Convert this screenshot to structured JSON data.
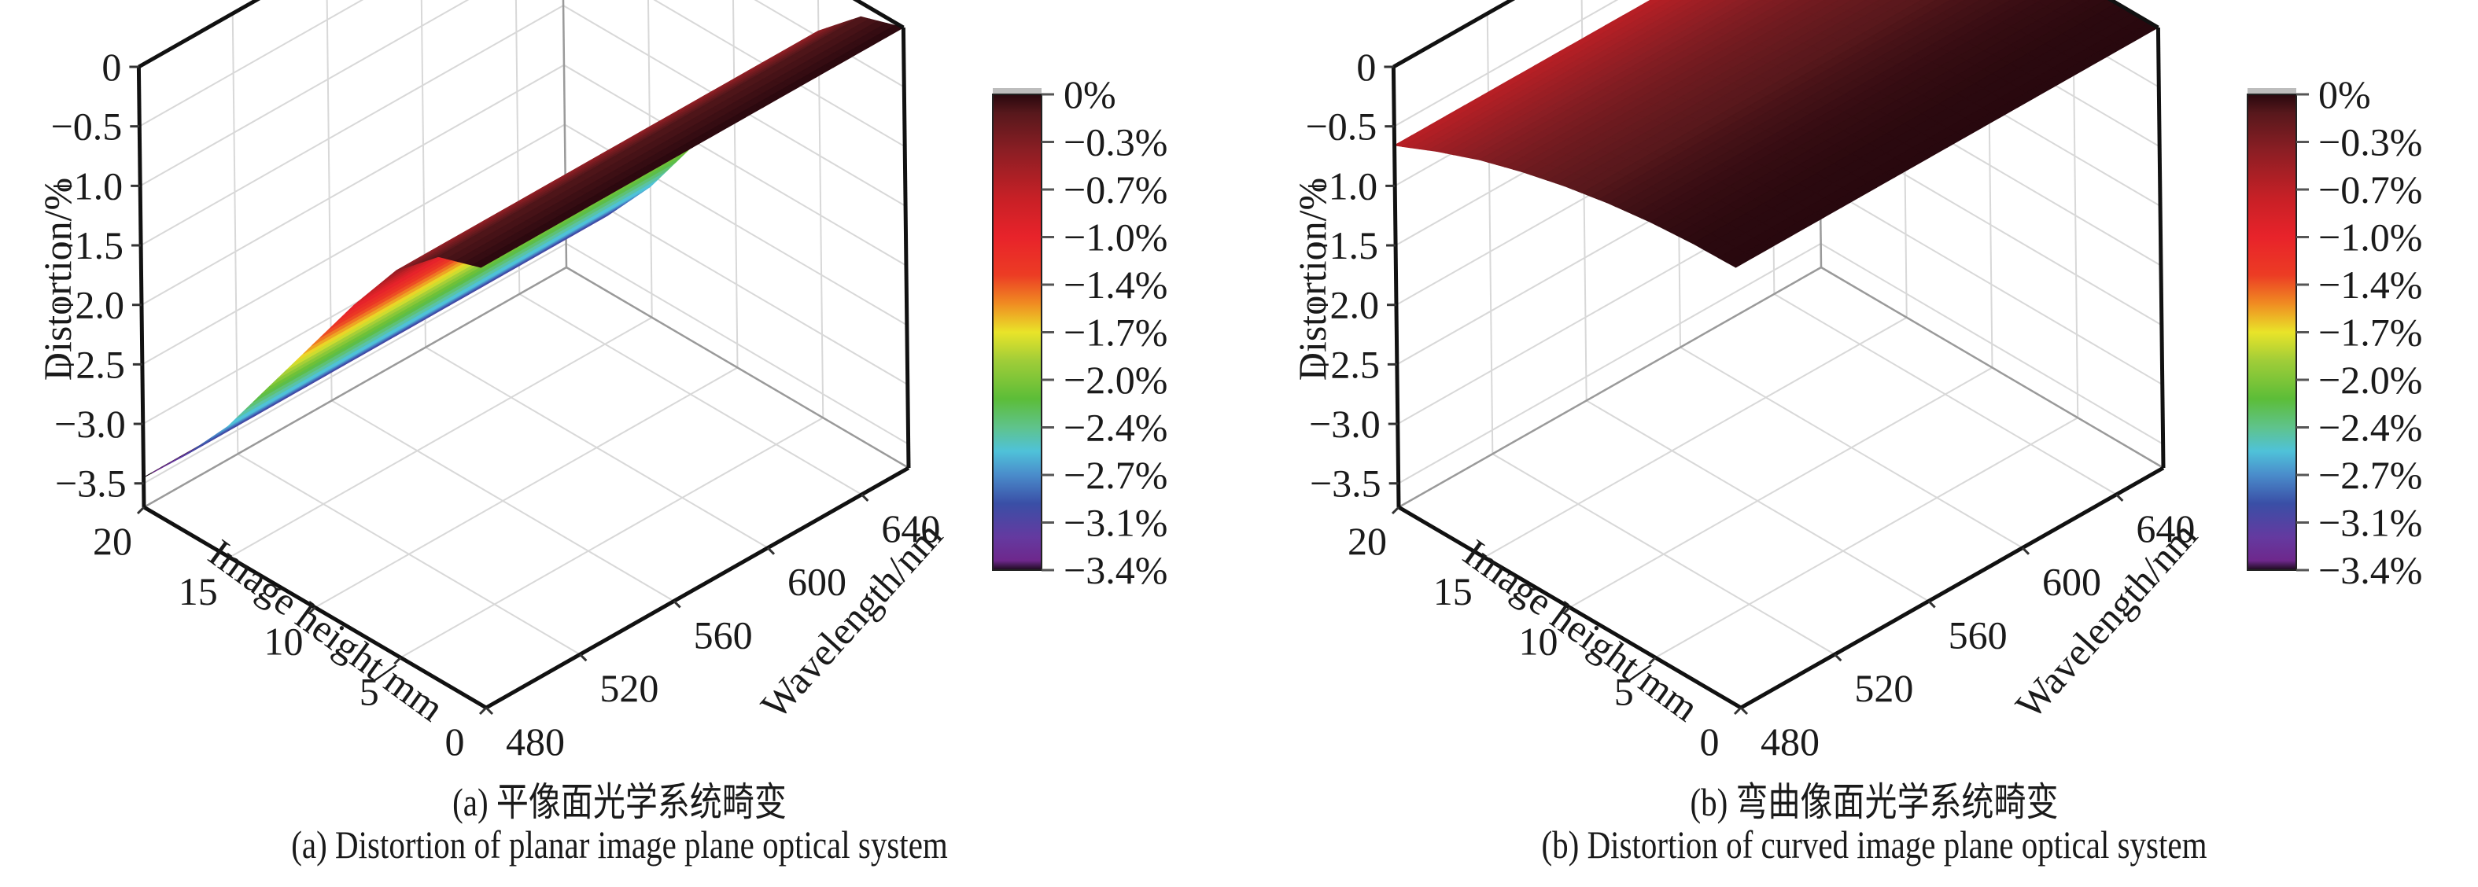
{
  "figure": {
    "panels": [
      {
        "id": "a",
        "caption_cn": "(a) 平像面光学系统畸变",
        "caption_en": "(a) Distortion of planar image plane optical system"
      },
      {
        "id": "b",
        "caption_cn": "(b) 弯曲像面光学系统畸变",
        "caption_en": "(b) Distortion of curved image plane optical system"
      }
    ]
  },
  "chart_data": [
    {
      "type": "surface3d",
      "title": "(a) Distortion of planar image plane optical system",
      "xlabel": "Image height/mm",
      "ylabel": "Wavelength/nm",
      "zlabel": "Distortion/%",
      "x_ticks": [
        "0",
        "5",
        "10",
        "15",
        "20"
      ],
      "y_ticks": [
        "480",
        "520",
        "560",
        "600",
        "640"
      ],
      "z_ticks": [
        "0",
        "−0.5",
        "−1.0",
        "−1.5",
        "−2.0",
        "−2.5",
        "−3.0",
        "−3.5"
      ],
      "xlim": [
        0,
        20
      ],
      "ylim": [
        480,
        660
      ],
      "zlim": [
        -3.7,
        0
      ],
      "image_height_mm": [
        0,
        2.5,
        5,
        7.5,
        10,
        12.5,
        15,
        17.5,
        20
      ],
      "distortion_pct_vs_image_height": [
        0,
        -0.12,
        -0.45,
        -0.95,
        -1.5,
        -2.05,
        -2.6,
        -3.05,
        -3.45
      ],
      "wavelength_dependence": "nearly constant across 480-660 nm",
      "colorbar": {
        "ticks": [
          "0%",
          "−0.3%",
          "−0.7%",
          "−1.0%",
          "−1.4%",
          "−1.7%",
          "−2.0%",
          "−2.4%",
          "−2.7%",
          "−3.1%",
          "−3.4%"
        ],
        "range": [
          -3.4,
          0
        ],
        "colormap": [
          "#2a0a1a",
          "#5a1a1c",
          "#8e1f24",
          "#c12026",
          "#e8232a",
          "#e8232a",
          "#ea5a24",
          "#f19722",
          "#e9e629",
          "#a9cf38",
          "#5cbd38",
          "#5cbd38",
          "#4fc2d9",
          "#4a8ccb",
          "#3a4fa6",
          "#3a4fa6",
          "#5a3a9c",
          "#6b2a8e",
          "#1a0a1a"
        ]
      },
      "grid": true
    },
    {
      "type": "surface3d",
      "title": "(b) Distortion of curved image plane optical system",
      "xlabel": "Image height/mm",
      "ylabel": "Wavelength/nm",
      "zlabel": "Distortion/%",
      "x_ticks": [
        "0",
        "5",
        "10",
        "15",
        "20"
      ],
      "y_ticks": [
        "480",
        "520",
        "560",
        "600",
        "640"
      ],
      "z_ticks": [
        "0",
        "−0.5",
        "−1.0",
        "−1.5",
        "−2.0",
        "−2.5",
        "−3.0",
        "−3.5"
      ],
      "xlim": [
        0,
        20
      ],
      "ylim": [
        480,
        660
      ],
      "zlim": [
        -3.7,
        0
      ],
      "image_height_mm": [
        0,
        2.5,
        5,
        7.5,
        10,
        12.5,
        15,
        17.5,
        20
      ],
      "distortion_pct_vs_image_height": [
        0,
        -0.01,
        -0.04,
        -0.09,
        -0.16,
        -0.25,
        -0.36,
        -0.5,
        -0.66
      ],
      "wavelength_dependence": "nearly constant across 480-660 nm",
      "colorbar": {
        "ticks": [
          "0%",
          "−0.3%",
          "−0.7%",
          "−1.0%",
          "−1.4%",
          "−1.7%",
          "−2.0%",
          "−2.4%",
          "−2.7%",
          "−3.1%",
          "−3.4%"
        ],
        "range": [
          -3.4,
          0
        ]
      },
      "grid": true
    }
  ]
}
